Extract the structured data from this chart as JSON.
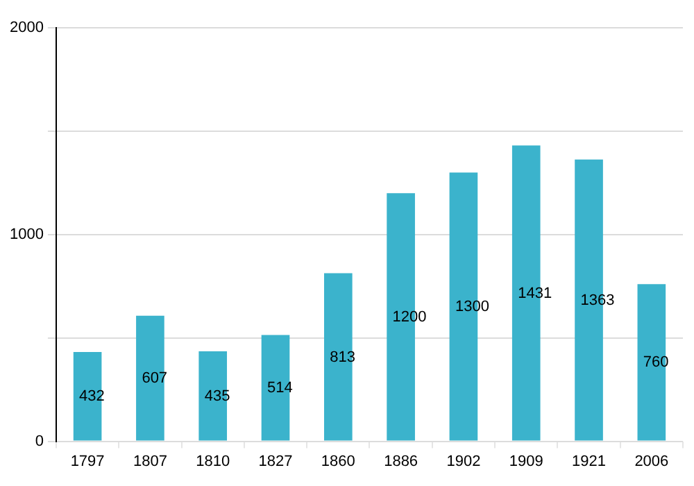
{
  "chart_data": {
    "type": "bar",
    "categories": [
      "1797",
      "1807",
      "1810",
      "1827",
      "1860",
      "1886",
      "1902",
      "1909",
      "1921",
      "2006"
    ],
    "values": [
      432,
      607,
      435,
      514,
      813,
      1200,
      1300,
      1431,
      1363,
      760
    ],
    "color": "#3bb3cc",
    "ylim": [
      0,
      2000
    ],
    "yticks": [
      0,
      {
        "value": 500,
        "label": null
      },
      1000,
      {
        "value": 1500,
        "label": null
      },
      2000
    ],
    "grid": true,
    "data_labels": true
  }
}
